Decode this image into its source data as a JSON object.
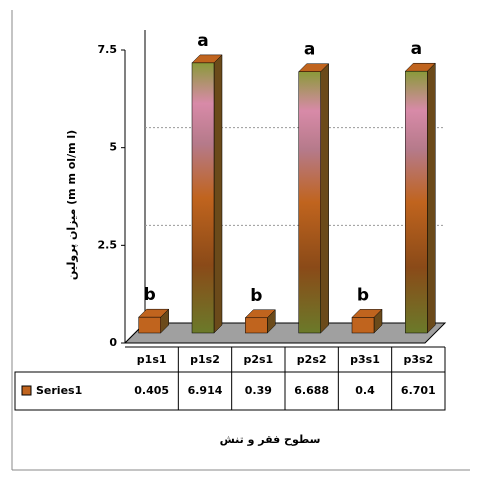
{
  "chart_data": {
    "type": "bar",
    "y_label": "میزان پرولین (m m ol/m l)",
    "x_label": "سطوح فقر و تنش",
    "categories": [
      "p1s1",
      "p1s2",
      "p2s1",
      "p2s2",
      "p3s1",
      "p3s2"
    ],
    "series": [
      {
        "name": "Series1",
        "color": "#c0641e",
        "values": [
          0.405,
          6.914,
          0.39,
          6.688,
          0.4,
          6.701
        ]
      }
    ],
    "annotations": [
      "b",
      "a",
      "b",
      "a",
      "b",
      "a"
    ],
    "ylim": [
      0,
      7.5
    ],
    "yticks": [
      0,
      2.5,
      5,
      7.5
    ],
    "grid": true,
    "data_table": true
  }
}
